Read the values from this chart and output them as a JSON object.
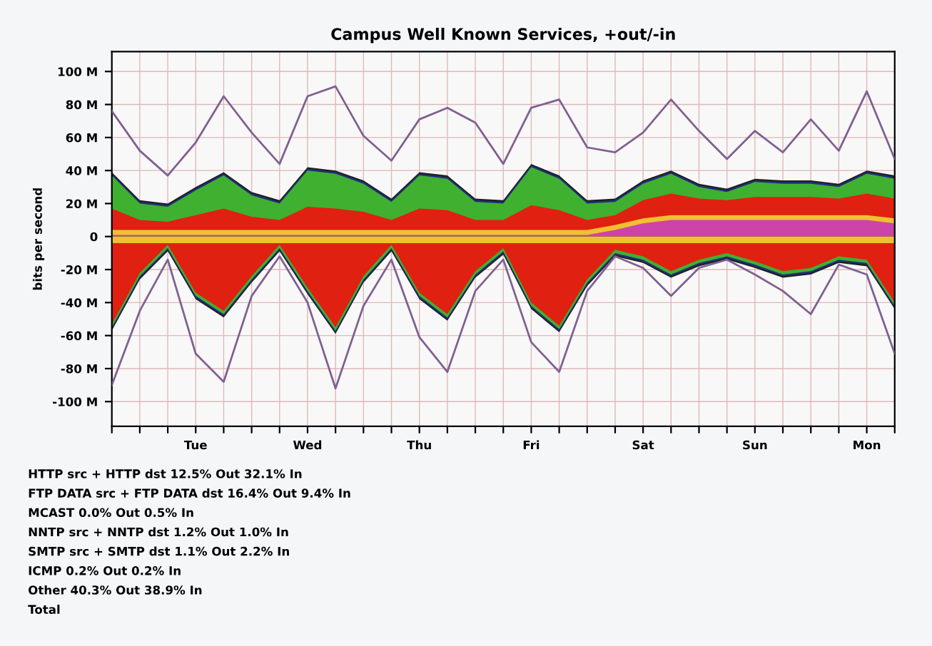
{
  "chart_data": {
    "type": "area",
    "title": "Campus Well Known Services, +out/-in",
    "ylabel": "bits per second",
    "categories": [
      null,
      null,
      null,
      "Tue",
      null,
      null,
      null,
      "Wed",
      null,
      null,
      null,
      "Thu",
      null,
      null,
      null,
      "Fri",
      null,
      null,
      null,
      "Sat",
      null,
      null,
      null,
      "Sun",
      null,
      null,
      null,
      "Mon",
      null
    ],
    "ylim": [
      -115,
      112
    ],
    "yticks": [
      {
        "value": -100,
        "label": "-100 M"
      },
      {
        "value": -80,
        "label": "-80 M"
      },
      {
        "value": -60,
        "label": "-60 M"
      },
      {
        "value": -40,
        "label": "-40 M"
      },
      {
        "value": -20,
        "label": "-20 M"
      },
      {
        "value": 0,
        "label": "0"
      },
      {
        "value": 20,
        "label": "20 M"
      },
      {
        "value": 40,
        "label": "40 M"
      },
      {
        "value": 60,
        "label": "60 M"
      },
      {
        "value": 80,
        "label": "80 M"
      },
      {
        "value": 100,
        "label": "100 M"
      }
    ],
    "grid": true,
    "series": [
      {
        "color": "#202020",
        "values": [
          39,
          22,
          20,
          30,
          39,
          27,
          22,
          42,
          40,
          34,
          23,
          39,
          37,
          23,
          22,
          44,
          37,
          22,
          23,
          34,
          40,
          32,
          29,
          35,
          34,
          34,
          32,
          40,
          37
        ]
      },
      {
        "color": "#203080",
        "values": [
          38,
          21,
          19,
          29,
          38,
          26,
          21,
          41,
          39,
          33,
          22,
          38,
          36,
          22,
          21,
          43,
          36,
          21,
          22,
          33,
          39,
          31,
          28,
          34,
          33,
          33,
          31,
          39,
          36
        ]
      },
      {
        "color": "#40b030",
        "values": [
          37,
          20,
          18,
          28,
          37,
          25,
          20,
          40,
          38,
          32,
          21,
          37,
          35,
          21,
          20,
          42,
          35,
          20,
          21,
          32,
          38,
          30,
          27,
          33,
          32,
          32,
          30,
          38,
          35
        ]
      },
      {
        "color": "#e02010",
        "values": [
          17,
          10,
          9,
          13,
          17,
          12,
          10,
          18,
          17,
          15,
          10,
          17,
          16,
          10,
          10,
          19,
          16,
          10,
          13,
          22,
          26,
          23,
          22,
          24,
          24,
          24,
          23,
          26,
          23
        ]
      },
      {
        "color": "#f0c030",
        "values": [
          4,
          4,
          4,
          4,
          4,
          4,
          4,
          4,
          4,
          4,
          4,
          4,
          4,
          4,
          4,
          4,
          4,
          4,
          7,
          11,
          13,
          13,
          13,
          13,
          13,
          13,
          13,
          13,
          11
        ]
      },
      {
        "color": "#cc44aa",
        "values": [
          1,
          1,
          1,
          1,
          1,
          1,
          1,
          1,
          1,
          1,
          1,
          1,
          1,
          1,
          1,
          1,
          1,
          1,
          4,
          8,
          10,
          10,
          10,
          10,
          10,
          10,
          10,
          10,
          8
        ]
      },
      {
        "color": "#202020",
        "values": [
          -57,
          -26,
          -9,
          -38,
          -49,
          -28,
          -9,
          -35,
          -59,
          -28,
          -9,
          -38,
          -51,
          -25,
          -11,
          -44,
          -58,
          -30,
          -12,
          -16,
          -25,
          -18,
          -14,
          -19,
          -25,
          -23,
          -16,
          -18,
          -44
        ]
      },
      {
        "color": "#203080",
        "values": [
          -56,
          -25,
          -8,
          -37,
          -48,
          -27,
          -8,
          -34,
          -58,
          -27,
          -8,
          -37,
          -50,
          -24,
          -10,
          -43,
          -57,
          -29,
          -11,
          -15,
          -24,
          -17,
          -13,
          -18,
          -24,
          -22,
          -15,
          -17,
          -43
        ]
      },
      {
        "color": "#40b030",
        "values": [
          -55,
          -24,
          -7,
          -36,
          -47,
          -26,
          -7,
          -33,
          -57,
          -26,
          -7,
          -36,
          -49,
          -23,
          -9,
          -42,
          -56,
          -28,
          -10,
          -14,
          -23,
          -16,
          -12,
          -17,
          -23,
          -21,
          -14,
          -16,
          -42
        ]
      },
      {
        "color": "#e02010",
        "values": [
          -53,
          -22,
          -5,
          -34,
          -45,
          -24,
          -5,
          -31,
          -55,
          -24,
          -5,
          -34,
          -47,
          -21,
          -7,
          -40,
          -54,
          -26,
          -8,
          -12,
          -21,
          -14,
          -10,
          -15,
          -21,
          -19,
          -12,
          -14,
          -40
        ]
      },
      {
        "color": "#f0c030",
        "values": [
          -4,
          -4,
          -4,
          -4,
          -4,
          -4,
          -4,
          -4,
          -4,
          -4,
          -4,
          -4,
          -4,
          -4,
          -4,
          -4,
          -4,
          -4,
          -4,
          -4,
          -4,
          -4,
          -4,
          -4,
          -4,
          -4,
          -4,
          -4,
          -4
        ]
      },
      {
        "type": "line",
        "color": "#806090",
        "values": [
          76,
          52,
          37,
          57,
          85,
          63,
          44,
          85,
          91,
          61,
          46,
          71,
          78,
          69,
          44,
          78,
          83,
          54,
          51,
          63,
          83,
          64,
          47,
          64,
          51,
          71,
          52,
          88,
          47
        ]
      },
      {
        "type": "line",
        "color": "#806090",
        "values": [
          -90,
          -45,
          -14,
          -71,
          -88,
          -36,
          -12,
          -40,
          -92,
          -42,
          -14,
          -61,
          -82,
          -33,
          -14,
          -64,
          -82,
          -33,
          -12,
          -19,
          -36,
          -19,
          -14,
          -23,
          -33,
          -47,
          -17,
          -23,
          -71
        ]
      }
    ],
    "annotations": [
      "HTTP src + HTTP dst 12.5% Out 32.1% In",
      "FTP DATA src + FTP DATA dst 16.4% Out 9.4% In",
      "MCAST 0.0% Out 0.5% In",
      "NNTP src + NNTP dst 1.2% Out 1.0% In",
      "SMTP src + SMTP dst 1.1% Out 2.2% In",
      "ICMP 0.2% Out 0.2% In",
      "Other 40.3% Out 38.9% In",
      "Total"
    ]
  }
}
